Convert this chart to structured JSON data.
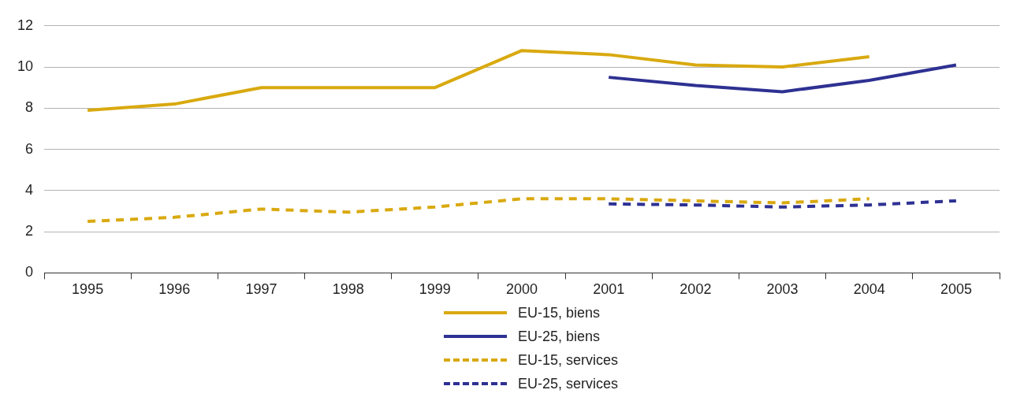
{
  "chart_data": {
    "type": "line",
    "categories": [
      "1995",
      "1996",
      "1997",
      "1998",
      "1999",
      "2000",
      "2001",
      "2002",
      "2003",
      "2004",
      "2005"
    ],
    "ylim": [
      0,
      12
    ],
    "yticks": [
      0,
      2,
      4,
      6,
      8,
      10,
      12
    ],
    "grid": "y",
    "legend": "bottom",
    "marker": "none",
    "series": [
      {
        "name": "EU-15, biens",
        "color": "#d9a90f",
        "line_style": "solid",
        "values": [
          7.9,
          8.2,
          9.0,
          9.0,
          9.0,
          10.8,
          10.6,
          10.1,
          10.0,
          10.5,
          null
        ]
      },
      {
        "name": "EU-25, biens",
        "color": "#2e3192",
        "line_style": "solid",
        "values": [
          null,
          null,
          null,
          null,
          null,
          null,
          9.5,
          9.1,
          8.8,
          9.35,
          10.1
        ]
      },
      {
        "name": "EU-15, services",
        "color": "#d9a90f",
        "line_style": "dashed",
        "values": [
          2.5,
          2.7,
          3.1,
          2.95,
          3.2,
          3.6,
          3.6,
          3.5,
          3.4,
          3.6,
          null
        ]
      },
      {
        "name": "EU-25, services",
        "color": "#2e3192",
        "line_style": "dashed",
        "values": [
          null,
          null,
          null,
          null,
          null,
          null,
          3.35,
          3.3,
          3.2,
          3.3,
          3.5
        ]
      }
    ]
  }
}
